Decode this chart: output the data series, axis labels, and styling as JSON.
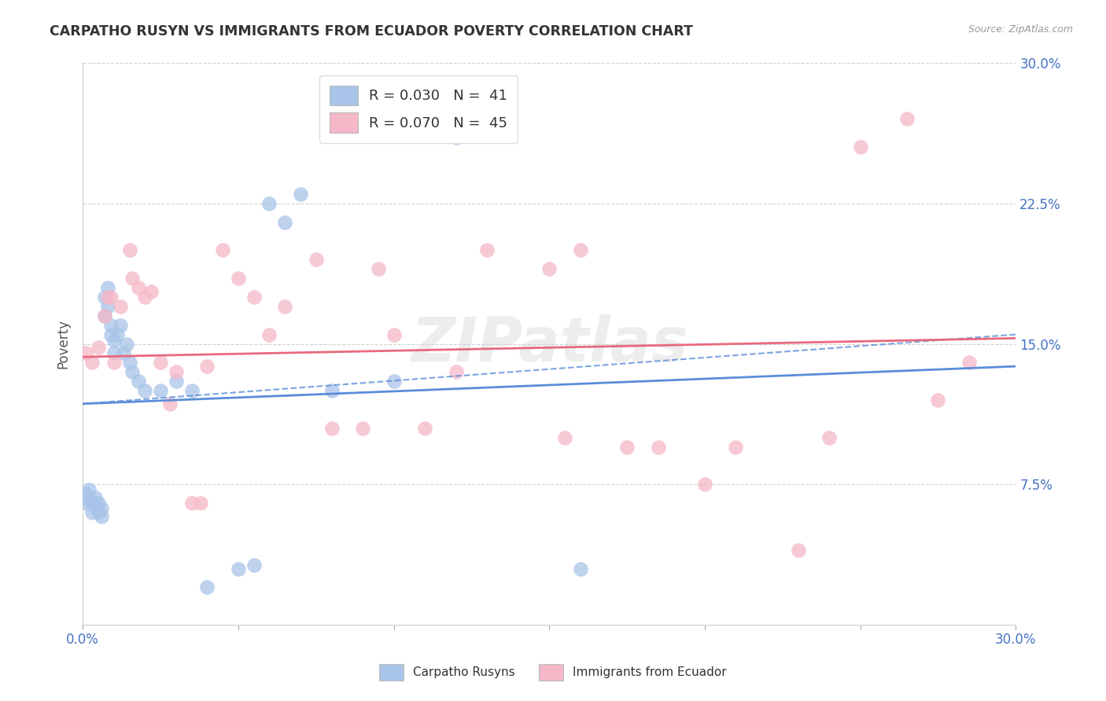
{
  "title": "CARPATHO RUSYN VS IMMIGRANTS FROM ECUADOR POVERTY CORRELATION CHART",
  "source": "Source: ZipAtlas.com",
  "ylabel": "Poverty",
  "xlim": [
    0.0,
    0.3
  ],
  "ylim": [
    0.0,
    0.3
  ],
  "blue_color": "#a8c4e8",
  "pink_color": "#f5b8c8",
  "blue_line_color": "#5b8dd9",
  "pink_line_color": "#e8697d",
  "watermark": "ZIPatlas",
  "blue_scatter_x": [
    0.001,
    0.001,
    0.002,
    0.002,
    0.003,
    0.003,
    0.004,
    0.004,
    0.005,
    0.005,
    0.006,
    0.006,
    0.007,
    0.007,
    0.008,
    0.008,
    0.009,
    0.009,
    0.01,
    0.01,
    0.011,
    0.012,
    0.013,
    0.014,
    0.015,
    0.016,
    0.018,
    0.02,
    0.025,
    0.03,
    0.035,
    0.04,
    0.05,
    0.055,
    0.06,
    0.065,
    0.07,
    0.08,
    0.1,
    0.12,
    0.16
  ],
  "blue_scatter_y": [
    0.065,
    0.07,
    0.067,
    0.072,
    0.065,
    0.06,
    0.063,
    0.068,
    0.06,
    0.065,
    0.062,
    0.058,
    0.165,
    0.175,
    0.17,
    0.18,
    0.155,
    0.16,
    0.145,
    0.152,
    0.155,
    0.16,
    0.145,
    0.15,
    0.14,
    0.135,
    0.13,
    0.125,
    0.125,
    0.13,
    0.125,
    0.02,
    0.03,
    0.032,
    0.225,
    0.215,
    0.23,
    0.125,
    0.13,
    0.26,
    0.03
  ],
  "pink_scatter_x": [
    0.001,
    0.003,
    0.005,
    0.007,
    0.008,
    0.009,
    0.01,
    0.012,
    0.015,
    0.016,
    0.018,
    0.02,
    0.022,
    0.025,
    0.028,
    0.03,
    0.035,
    0.038,
    0.04,
    0.045,
    0.05,
    0.055,
    0.06,
    0.065,
    0.075,
    0.08,
    0.09,
    0.095,
    0.1,
    0.11,
    0.12,
    0.13,
    0.15,
    0.155,
    0.16,
    0.175,
    0.185,
    0.2,
    0.21,
    0.23,
    0.24,
    0.25,
    0.265,
    0.275,
    0.285
  ],
  "pink_scatter_y": [
    0.145,
    0.14,
    0.148,
    0.165,
    0.175,
    0.175,
    0.14,
    0.17,
    0.2,
    0.185,
    0.18,
    0.175,
    0.178,
    0.14,
    0.118,
    0.135,
    0.065,
    0.065,
    0.138,
    0.2,
    0.185,
    0.175,
    0.155,
    0.17,
    0.195,
    0.105,
    0.105,
    0.19,
    0.155,
    0.105,
    0.135,
    0.2,
    0.19,
    0.1,
    0.2,
    0.095,
    0.095,
    0.075,
    0.095,
    0.04,
    0.1,
    0.255,
    0.27,
    0.12,
    0.14
  ],
  "blue_line_start_x": 0.0,
  "blue_line_end_x": 0.3,
  "blue_line_start_y": 0.118,
  "blue_line_end_y": 0.138,
  "pink_line_start_x": 0.0,
  "pink_line_end_x": 0.3,
  "pink_line_start_y": 0.143,
  "pink_line_end_y": 0.153,
  "dashed_line_start_x": 0.0,
  "dashed_line_end_x": 0.3,
  "dashed_line_start_y": 0.118,
  "dashed_line_end_y": 0.155
}
